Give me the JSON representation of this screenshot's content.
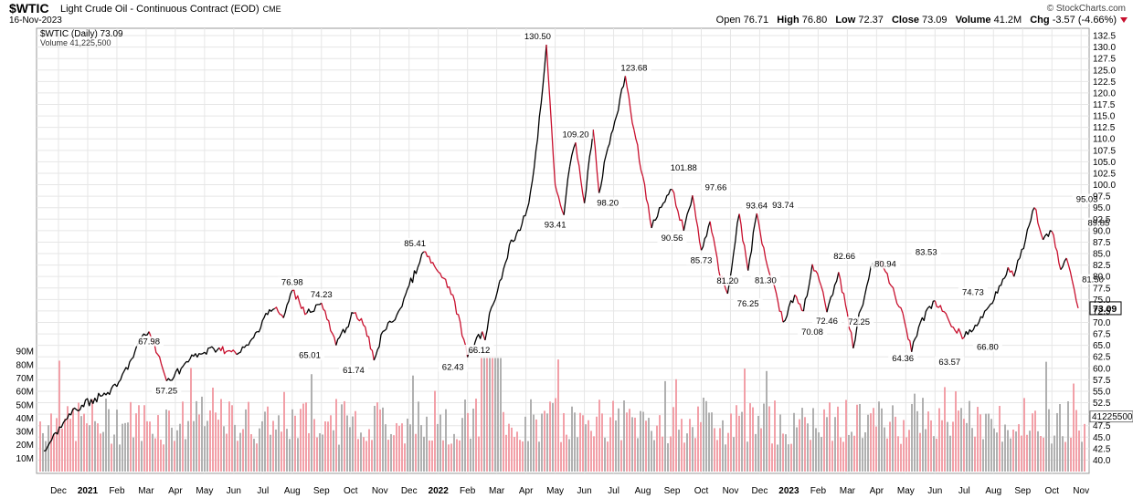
{
  "header": {
    "symbol": "$WTIC",
    "name": "Light Crude Oil - Continuous Contract (EOD)",
    "exchange": "CME",
    "date": "16-Nov-2023",
    "credit": "© StockCharts.com",
    "open_label": "Open",
    "open": "76.71",
    "high_label": "High",
    "high": "76.80",
    "low_label": "Low",
    "low": "72.37",
    "close_label": "Close",
    "close": "73.09",
    "volume_label": "Volume",
    "volume": "41.2M",
    "chg_label": "Chg",
    "chg": "-3.57 (-4.66%)"
  },
  "legend": {
    "price": "$WTIC (Daily) 73.09",
    "volume": "Volume 41,225,500"
  },
  "colors": {
    "up": "#000000",
    "down": "#c8102e",
    "vol_up": "#b0b0b0",
    "vol_down": "#f2a0a8",
    "grid": "#e6e6e6",
    "last_price_box": "#000000"
  },
  "chart_data": [
    {
      "type": "line",
      "title": "$WTIC (Daily)",
      "y_axis_side": "right",
      "ylim": [
        37.5,
        133.5
      ],
      "yticks": [
        "132.5",
        "130.0",
        "127.5",
        "125.0",
        "122.5",
        "120.0",
        "117.5",
        "115.0",
        "112.5",
        "110.0",
        "107.5",
        "105.0",
        "102.5",
        "100.0",
        "97.5",
        "95.0",
        "92.5",
        "90.0",
        "87.5",
        "85.0",
        "82.5",
        "80.0",
        "77.5",
        "75.0",
        "72.5",
        "70.0",
        "67.5",
        "65.0",
        "62.5",
        "60.0",
        "57.5",
        "55.0",
        "52.5",
        "50.0",
        "47.5",
        "45.0",
        "42.5",
        "40.0"
      ],
      "xticks": [
        "Dec",
        "2021",
        "Feb",
        "Mar",
        "Apr",
        "May",
        "Jun",
        "Jul",
        "Aug",
        "Sep",
        "Oct",
        "Nov",
        "Dec",
        "2022",
        "Feb",
        "Mar",
        "Apr",
        "May",
        "Jun",
        "Jul",
        "Aug",
        "Sep",
        "Oct",
        "Nov",
        "Dec",
        "2023",
        "Feb",
        "Mar",
        "Apr",
        "May",
        "Jun",
        "Jul",
        "Aug",
        "Sep",
        "Oct",
        "Nov"
      ],
      "x": [
        0,
        0.4,
        0.8,
        1.3,
        2.0,
        2.5,
        3.0,
        3.3,
        3.6,
        3.9,
        4.2,
        4.7,
        5.0,
        5.5,
        6.0,
        6.6,
        7.0,
        7.3,
        7.6,
        7.9,
        8.2,
        8.5,
        9.0,
        9.5,
        10.0,
        10.6,
        11.0,
        11.3,
        11.6,
        11.9,
        12.2,
        12.5,
        12.8,
        13.0,
        13.5,
        14.0,
        14.5,
        15.0,
        15.1,
        15.25,
        15.45,
        15.6,
        15.8,
        16.0,
        16.3,
        16.6,
        16.9,
        17.2,
        17.5,
        17.8,
        18.0,
        18.2,
        18.5,
        18.8,
        19.0,
        19.3,
        19.6,
        19.9,
        20.2,
        20.5,
        20.8,
        21.2,
        21.5,
        21.9,
        22.2,
        22.5,
        22.8,
        23.1,
        23.4,
        23.8,
        24.1,
        24.4,
        24.7,
        25.0,
        25.3,
        25.7,
        26.0,
        26.3,
        26.6,
        26.8,
        27.0,
        27.2,
        27.5,
        27.7,
        27.9,
        28.1,
        28.3,
        28.6,
        29.0,
        29.4,
        29.7,
        30.0,
        30.5,
        31.0,
        31.5,
        32.0,
        32.4,
        32.7,
        33.0,
        33.2,
        33.4,
        33.6,
        33.9,
        34.2,
        34.5,
        34.8,
        35.0,
        35.2,
        35.4
      ],
      "values": [
        42,
        46,
        49,
        52,
        54,
        56,
        62,
        66,
        67.98,
        63,
        57.25,
        60,
        62,
        63.5,
        64.5,
        63,
        65,
        68,
        72,
        73,
        71,
        76.98,
        72,
        74.23,
        65.01,
        72,
        69,
        61.74,
        68,
        70,
        73,
        78,
        82,
        85.41,
        81,
        76,
        62.43,
        68,
        66.12,
        72,
        75,
        79,
        83,
        88,
        90,
        96,
        110,
        130.5,
        100,
        93.41,
        104,
        109.2,
        96,
        112,
        98.2,
        108,
        115,
        123.68,
        112,
        101.88,
        90.56,
        96,
        99,
        90,
        97.66,
        85.73,
        92,
        81.2,
        76.25,
        93.64,
        81.3,
        93.74,
        84,
        78,
        70.08,
        76,
        72.46,
        82.66,
        78,
        72.25,
        76,
        80.94,
        72,
        64.36,
        72,
        76,
        82,
        83.53,
        78,
        72,
        63.57,
        70,
        74.73,
        70,
        66.8,
        70,
        74,
        78,
        82,
        80,
        84,
        88,
        95.03,
        88,
        89.85,
        81.5,
        84,
        79,
        73.09
      ],
      "labels": [
        {
          "text": "67.98",
          "x": 3.6,
          "y": 67.98
        },
        {
          "text": "57.25",
          "x": 4.2,
          "y": 57.25
        },
        {
          "text": "76.98",
          "x": 8.5,
          "y": 76.98
        },
        {
          "text": "74.23",
          "x": 9.5,
          "y": 74.23
        },
        {
          "text": "65.01",
          "x": 9.1,
          "y": 65.01
        },
        {
          "text": "61.74",
          "x": 10.6,
          "y": 61.74
        },
        {
          "text": "85.41",
          "x": 12.7,
          "y": 85.41
        },
        {
          "text": "62.43",
          "x": 14.0,
          "y": 62.43
        },
        {
          "text": "66.12",
          "x": 14.9,
          "y": 66.12
        },
        {
          "text": "130.50",
          "x": 16.9,
          "y": 130.5
        },
        {
          "text": "93.41",
          "x": 17.5,
          "y": 93.41
        },
        {
          "text": "109.20",
          "x": 18.2,
          "y": 109.2
        },
        {
          "text": "98.20",
          "x": 19.3,
          "y": 98.2
        },
        {
          "text": "123.68",
          "x": 20.2,
          "y": 123.68
        },
        {
          "text": "101.88",
          "x": 21.9,
          "y": 101.88
        },
        {
          "text": "90.56",
          "x": 21.5,
          "y": 90.56
        },
        {
          "text": "97.66",
          "x": 23.0,
          "y": 97.66
        },
        {
          "text": "85.73",
          "x": 22.5,
          "y": 85.73
        },
        {
          "text": "81.20",
          "x": 23.4,
          "y": 81.2
        },
        {
          "text": "76.25",
          "x": 24.1,
          "y": 76.25
        },
        {
          "text": "93.64",
          "x": 24.4,
          "y": 93.64
        },
        {
          "text": "81.30",
          "x": 24.7,
          "y": 81.3
        },
        {
          "text": "93.74",
          "x": 25.3,
          "y": 93.74
        },
        {
          "text": "70.08",
          "x": 26.3,
          "y": 70.08
        },
        {
          "text": "72.46",
          "x": 26.8,
          "y": 72.46
        },
        {
          "text": "82.66",
          "x": 27.4,
          "y": 82.66
        },
        {
          "text": "72.25",
          "x": 27.9,
          "y": 72.25
        },
        {
          "text": "80.94",
          "x": 28.8,
          "y": 80.94
        },
        {
          "text": "64.36",
          "x": 29.4,
          "y": 64.36
        },
        {
          "text": "83.53",
          "x": 30.2,
          "y": 83.53
        },
        {
          "text": "63.57",
          "x": 31.0,
          "y": 63.57
        },
        {
          "text": "74.73",
          "x": 31.8,
          "y": 74.73
        },
        {
          "text": "66.80",
          "x": 32.3,
          "y": 66.8
        },
        {
          "text": "95.03",
          "x": 35.7,
          "y": 95.03
        },
        {
          "text": "89.85",
          "x": 36.1,
          "y": 89.85
        },
        {
          "text": "81.50",
          "x": 35.9,
          "y": 81.5
        }
      ],
      "last_price": "73.09"
    },
    {
      "type": "bar",
      "title": "Volume",
      "y_axis_side": "left",
      "ylim": [
        0,
        97
      ],
      "yticks": [
        "90M",
        "80M",
        "70M",
        "60M",
        "50M",
        "40M",
        "30M",
        "20M",
        "10M"
      ],
      "last_value_label": "41225500",
      "approx_range": [
        20,
        85
      ],
      "peak": 85
    }
  ]
}
